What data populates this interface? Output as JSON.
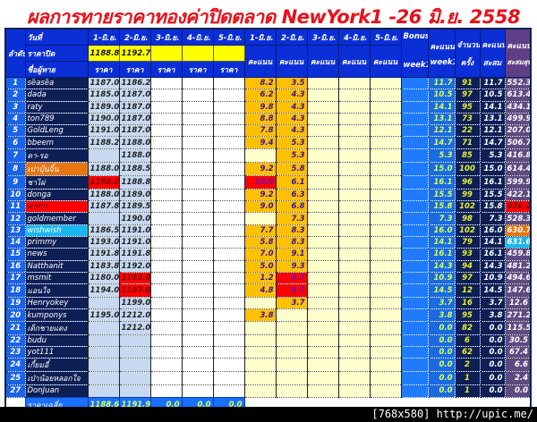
{
  "title": "ผลการทายราคาทองค่าปิดตลาด NewYork1 -26 มิ.ย. 2558",
  "header": {
    "rank_label": "ลำดับที่",
    "date_label": "วันที่",
    "close_label": "ราคาปิด",
    "name_label": "ชื่อผู้ทาย",
    "dates": [
      "1-มิ.ย.",
      "2-มิ.ย.",
      "3-มิ.ย.",
      "4-มิ.ย.",
      "5-มิ.ย."
    ],
    "closing_prices": [
      "1188.8",
      "1192.7",
      "",
      "",
      ""
    ],
    "price_label": "ราคา",
    "score_label": "คะแนน",
    "bonus_label": "Bonus",
    "bonus_sub": "week1",
    "week_score_label": "คะแนน",
    "week_score_sub": "week1",
    "count_label": "จำนวน",
    "count_sub": "ครั้ง",
    "cum_label": "คะแนน",
    "cum_sub": "สะสม",
    "total_label": "คะแนน",
    "total_sub": "สะสมสุทธิ"
  },
  "colors": {
    "title": "#e8101a",
    "header": "#0b2fd6",
    "name_bg": "#0d1f55",
    "score_bg": "#ffc000",
    "total_bg": "#5e4a80",
    "highlight_red": "#ff0000",
    "highlight_orange": "#e87510",
    "highlight_sky": "#19b6f0"
  },
  "rows": [
    {
      "rank": "1",
      "name": "sẽasẽa",
      "prices": [
        "1187.0",
        "1186.2"
      ],
      "scores": [
        "8.2",
        "3.5"
      ],
      "week1": "11.7",
      "count": "91",
      "cum": "11.7",
      "total": "552.3"
    },
    {
      "rank": "2",
      "name": "dada",
      "prices": [
        "1185.0",
        "1187.0"
      ],
      "scores": [
        "6.2",
        "4.3"
      ],
      "week1": "10.5",
      "count": "97",
      "cum": "10.5",
      "total": "613.4"
    },
    {
      "rank": "3",
      "name": "raty",
      "prices": [
        "1189.0",
        "1187.0"
      ],
      "scores": [
        "9.8",
        "4.3"
      ],
      "week1": "14.1",
      "count": "95",
      "cum": "14.1",
      "total": "434.1"
    },
    {
      "rank": "4",
      "name": "ton789",
      "prices": [
        "1190.0",
        "1187.0"
      ],
      "scores": [
        "8.8",
        "4.3"
      ],
      "week1": "13.1",
      "count": "73",
      "cum": "13.1",
      "total": "499.9"
    },
    {
      "rank": "5",
      "name": "GoldLeng",
      "prices": [
        "1191.0",
        "1187.0"
      ],
      "scores": [
        "7.8",
        "4.3"
      ],
      "week1": "12.1",
      "count": "22",
      "cum": "12.1",
      "total": "207.0"
    },
    {
      "rank": "6",
      "name": "bbeem",
      "prices": [
        "1188.2",
        "1188.0"
      ],
      "scores": [
        "9.4",
        "5.3"
      ],
      "week1": "14.7",
      "count": "71",
      "cum": "14.7",
      "total": "506.7"
    },
    {
      "rank": "7",
      "name": "ตา-รอ",
      "prices": [
        "",
        "1188.0"
      ],
      "scores": [
        "",
        "5.3"
      ],
      "week1": "5.3",
      "count": "85",
      "cum": "5.3",
      "total": "416.8"
    },
    {
      "rank": "8",
      "name": "เปาบุ้นจิ้น",
      "prices": [
        "1188.0",
        "1188.5"
      ],
      "scores": [
        "9.2",
        "5.8"
      ],
      "week1": "15.0",
      "count": "100",
      "cum": "15.0",
      "total": "614.4",
      "hl": {
        "name": "orange"
      }
    },
    {
      "rank": "9",
      "name": "ชาไผ่",
      "prices": [
        "1188.8",
        "1188.8"
      ],
      "scores": [
        "10.0",
        "6.1"
      ],
      "week1": "16.1",
      "count": "96",
      "cum": "16.1",
      "total": "599.9",
      "hl": {
        "p0": "red",
        "s0": "sred"
      }
    },
    {
      "rank": "10",
      "name": "donga",
      "prices": [
        "1188.0",
        "1189.0"
      ],
      "scores": [
        "9.2",
        "6.3"
      ],
      "week1": "15.5",
      "count": "99",
      "cum": "15.5",
      "total": "422.1"
    },
    {
      "rank": "11",
      "name": "wann",
      "prices": [
        "1187.8",
        "1189.5"
      ],
      "scores": [
        "9.0",
        "6.8"
      ],
      "week1": "15.8",
      "count": "102",
      "cum": "15.8",
      "total": "656.2",
      "hl": {
        "name": "red",
        "total": "red"
      }
    },
    {
      "rank": "12",
      "name": "goldmember",
      "prices": [
        "",
        "1190.0"
      ],
      "scores": [
        "",
        "7.3"
      ],
      "week1": "7.3",
      "count": "98",
      "cum": "7.3",
      "total": "528.3"
    },
    {
      "rank": "13",
      "name": "wishwish",
      "prices": [
        "1186.5",
        "1191.0"
      ],
      "scores": [
        "7.7",
        "8.3"
      ],
      "week1": "16.0",
      "count": "102",
      "cum": "16.0",
      "total": "630.7",
      "hl": {
        "name": "sky",
        "total": "orange"
      }
    },
    {
      "rank": "14",
      "name": "primmy",
      "prices": [
        "1193.0",
        "1191.0"
      ],
      "scores": [
        "5.8",
        "8.3"
      ],
      "week1": "14.1",
      "count": "79",
      "cum": "14.1",
      "total": "631.6",
      "hl": {
        "total": "sky"
      }
    },
    {
      "rank": "15",
      "name": "news",
      "prices": [
        "1191.8",
        "1191.8"
      ],
      "scores": [
        "7.0",
        "9.1"
      ],
      "week1": "16.1",
      "count": "93",
      "cum": "16.1",
      "total": "459.8"
    },
    {
      "rank": "16",
      "name": "Natthanit",
      "prices": [
        "1183.8",
        "1192.0"
      ],
      "scores": [
        "5.0",
        "9.3"
      ],
      "week1": "14.3",
      "count": "94",
      "cum": "14.3",
      "total": "481.2"
    },
    {
      "rank": "17",
      "name": "msmit",
      "prices": [
        "1180.0",
        "1193.0"
      ],
      "scores": [
        "1.2",
        "9.7"
      ],
      "week1": "10.9",
      "count": "97",
      "cum": "10.9",
      "total": "494.6",
      "hl": {
        "p1": "red",
        "s1": "sred"
      }
    },
    {
      "rank": "18",
      "name": "แอนใจ",
      "prices": [
        "1194.0",
        "1193.0"
      ],
      "scores": [
        "4.8",
        "9.7"
      ],
      "week1": "14.5",
      "count": "12",
      "cum": "14.5",
      "total": "147.6",
      "hl": {
        "p1": "red",
        "s1": "sred"
      }
    },
    {
      "rank": "19",
      "name": "Henryokey",
      "prices": [
        "",
        "1199.0"
      ],
      "scores": [
        "",
        "3.7"
      ],
      "week1": "3.7",
      "count": "16",
      "cum": "3.7",
      "total": "12.6"
    },
    {
      "rank": "20",
      "name": "kumponys",
      "prices": [
        "1195.0",
        "1212.0"
      ],
      "scores": [
        "3.8",
        ""
      ],
      "week1": "3.8",
      "count": "95",
      "cum": "3.8",
      "total": "271.2"
    },
    {
      "rank": "21",
      "name": "เด็กชายแดง",
      "prices": [
        "",
        "1212.0"
      ],
      "scores": [
        "",
        ""
      ],
      "week1": "0.0",
      "count": "82",
      "cum": "0.0",
      "total": "115.5"
    },
    {
      "rank": "22",
      "name": "budu",
      "prices": [
        "",
        ""
      ],
      "scores": [
        "",
        ""
      ],
      "week1": "0.0",
      "count": "6",
      "cum": "0.0",
      "total": "30.5"
    },
    {
      "rank": "23",
      "name": "yot111",
      "prices": [
        "",
        ""
      ],
      "scores": [
        "",
        ""
      ],
      "week1": "0.0",
      "count": "62",
      "cum": "0.0",
      "total": "67.4"
    },
    {
      "rank": "24",
      "name": "เกี้ยมอี๋",
      "prices": [
        "",
        ""
      ],
      "scores": [
        "",
        ""
      ],
      "week1": "0.0",
      "count": "2",
      "cum": "0.0",
      "total": "6.6"
    },
    {
      "rank": "25",
      "name": "เป่าน้อยหลอกใจ",
      "prices": [
        "",
        ""
      ],
      "scores": [
        "",
        ""
      ],
      "week1": "0.0",
      "count": "1",
      "cum": "0.0",
      "total": "2.4"
    },
    {
      "rank": "27",
      "name": "DonJuan",
      "prices": [
        "",
        ""
      ],
      "scores": [
        "",
        ""
      ],
      "week1": "0.0",
      "count": "1",
      "cum": "0.0",
      "total": "0.0"
    }
  ],
  "footer": {
    "label": "ราคาเฉลี่ย",
    "averages": [
      "1188.6",
      "1191.9",
      "0.0",
      "0.0",
      "0.0"
    ]
  },
  "watermark": "[768x580] http://upic.me/"
}
